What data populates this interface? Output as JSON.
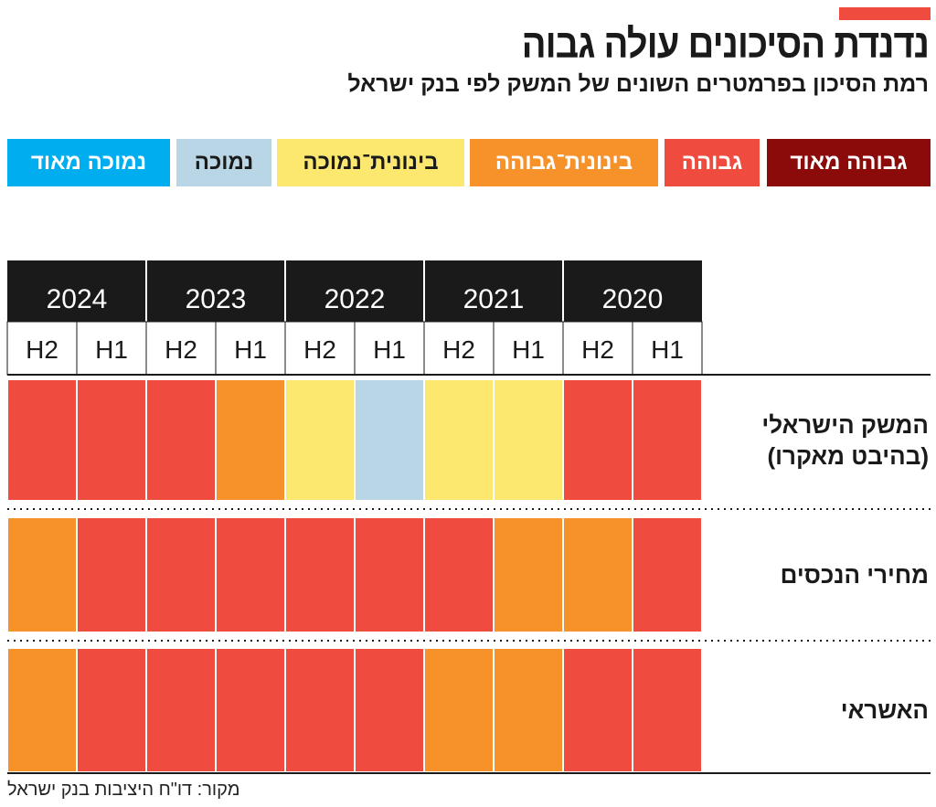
{
  "title": "נדנדת הסיכונים עולה גבוה",
  "subtitle": "רמת הסיכון בפרמטרים השונים של המשק לפי בנק ישראל",
  "source": "מקור: דו\"ח היציבות בנק ישראל",
  "legend": [
    {
      "key": "very_high",
      "label": "גבוהה מאוד",
      "color": "#8b0a0a",
      "text": "#ffffff"
    },
    {
      "key": "high",
      "label": "גבוהה",
      "color": "#ef4b3f",
      "text": "#ffffff"
    },
    {
      "key": "med_high",
      "label": "בינונית־גבוהה",
      "color": "#f7922a",
      "text": "#ffffff"
    },
    {
      "key": "med_low",
      "label": "בינונית־נמוכה",
      "color": "#fde86f",
      "text": "#1a1a1a"
    },
    {
      "key": "low",
      "label": "נמוכה",
      "color": "#b8d6e6",
      "text": "#1a1a1a"
    },
    {
      "key": "very_low",
      "label": "נמוכה מאוד",
      "color": "#00aeef",
      "text": "#ffffff"
    }
  ],
  "chart_data": {
    "type": "heatmap",
    "years": [
      "2024",
      "2023",
      "2022",
      "2021",
      "2020"
    ],
    "x": [
      "H2",
      "H1",
      "H2",
      "H1",
      "H2",
      "H1",
      "H2",
      "H1",
      "H2",
      "H1"
    ],
    "rows": [
      {
        "label_lines": [
          "המשק הישראלי",
          "(בהיבט מאקרו)"
        ],
        "values": [
          "high",
          "high",
          "high",
          "med_high",
          "med_low",
          "low",
          "med_low",
          "med_low",
          "high",
          "high"
        ]
      },
      {
        "label_lines": [
          "מחירי הנכסים"
        ],
        "values": [
          "med_high",
          "high",
          "high",
          "high",
          "high",
          "high",
          "high",
          "med_high",
          "med_high",
          "high"
        ]
      },
      {
        "label_lines": [
          "האשראי"
        ],
        "values": [
          "med_high",
          "high",
          "high",
          "high",
          "high",
          "high",
          "med_high",
          "med_high",
          "high",
          "high"
        ]
      }
    ]
  }
}
